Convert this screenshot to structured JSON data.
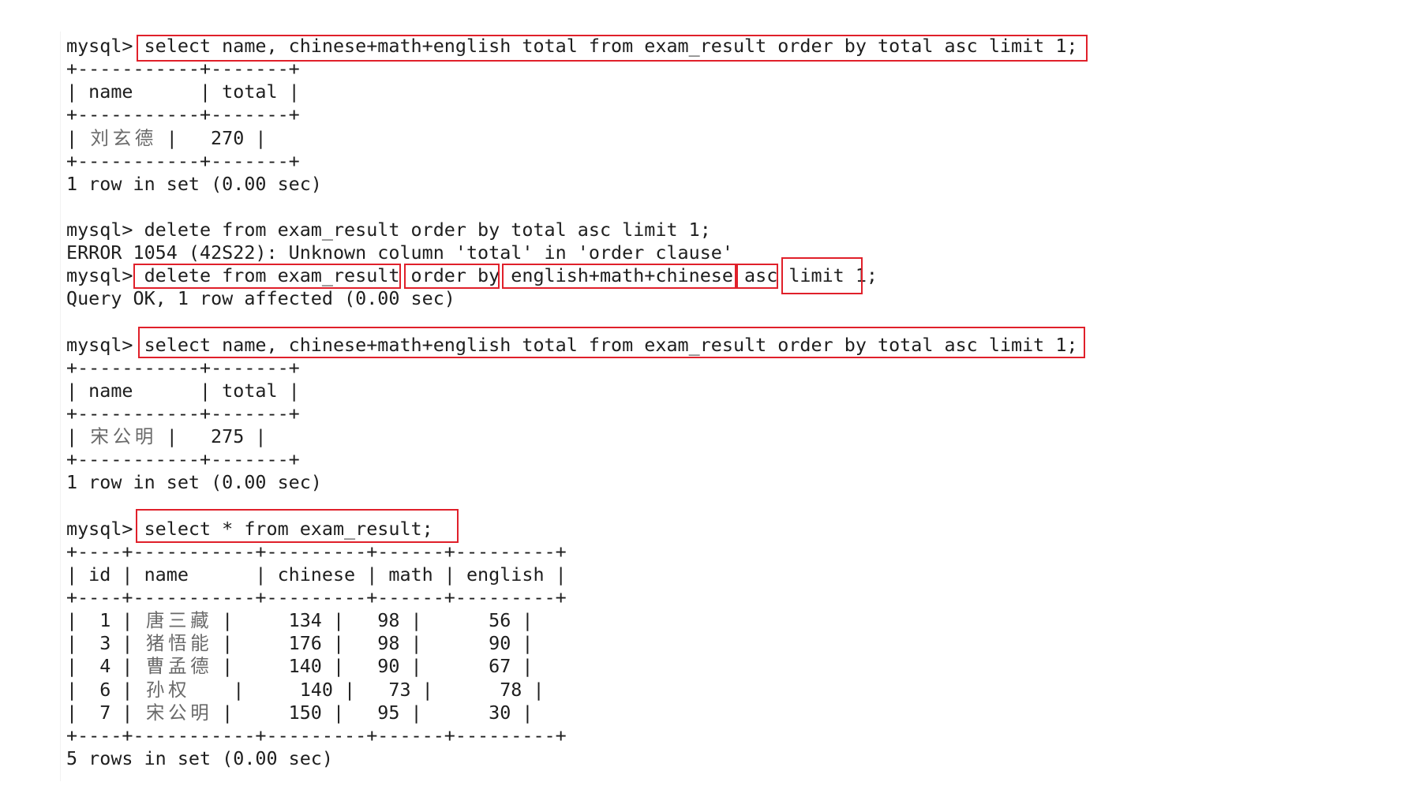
{
  "terminal": {
    "lines": [
      "mysql> select name, chinese+math+english total from exam_result order by total asc limit 1;",
      "+-----------+-------+",
      "| name      | total |",
      "+-----------+-------+",
      "| 刘玄德    |   270 |",
      "+-----------+-------+",
      "1 row in set (0.00 sec)",
      "",
      "mysql> delete from exam_result order by total asc limit 1;",
      "ERROR 1054 (42S22): Unknown column 'total' in 'order clause'",
      "mysql> delete from exam_result order by english+math+chinese asc limit 1;",
      "Query OK, 1 row affected (0.00 sec)",
      "",
      "mysql> select name, chinese+math+english total from exam_result order by total asc limit 1;",
      "+-----------+-------+",
      "| name      | total |",
      "+-----------+-------+",
      "| 宋公明    |   275 |",
      "+-----------+-------+",
      "1 row in set (0.00 sec)",
      "",
      "mysql> select * from exam_result;",
      "+----+-----------+---------+------+---------+",
      "| id | name      | chinese | math | english |",
      "+----+-----------+---------+------+---------+",
      "|  1 | 唐三藏    |     134 |   98 |      56 |",
      "|  3 | 猪悟能    |     176 |   98 |      90 |",
      "|  4 | 曹孟德    |     140 |   90 |      67 |",
      "|  6 | 孙权      |     140 |   73 |      78 |",
      "|  7 | 宋公明    |     150 |   95 |      30 |",
      "+----+-----------+---------+------+---------+",
      "5 rows in set (0.00 sec)"
    ]
  },
  "highlight_color": "#e0202a",
  "text_color": "#1e1e1e"
}
